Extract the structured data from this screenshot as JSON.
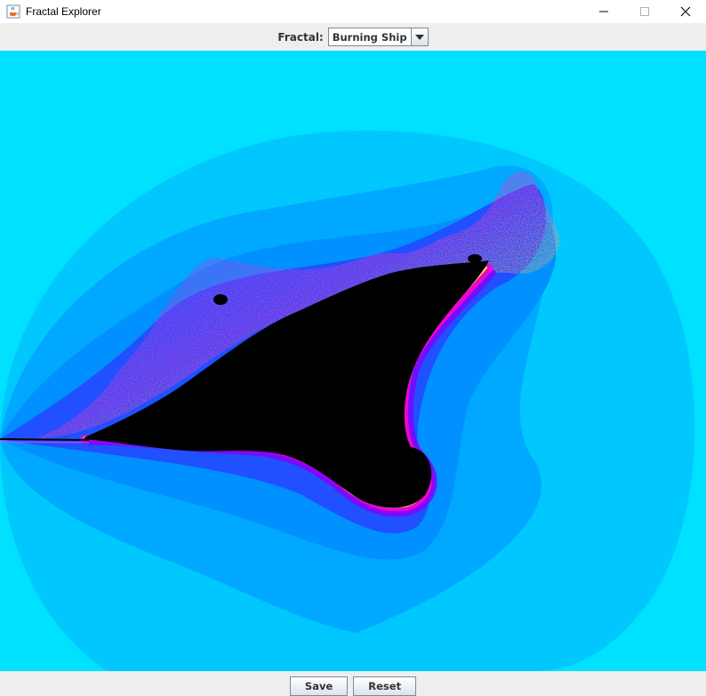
{
  "window": {
    "title": "Fractal Explorer"
  },
  "toolbar": {
    "fractal_label": "Fractal:",
    "fractal_selected": "Burning Ship"
  },
  "buttons": {
    "save_label": "Save",
    "reset_label": "Reset"
  },
  "icons": {
    "app": "java-cup-icon",
    "minimize": "minimize-icon",
    "maximize": "maximize-icon",
    "close": "close-icon",
    "dropdown": "chevron-down-icon"
  },
  "colors": {
    "background": "#00e0ff",
    "band_outer": "#00c8ff",
    "band_mid": "#00a8ff",
    "band_inner": "#0070ff",
    "band_deep": "#2038ff",
    "edge_purple": "#8000ff",
    "edge_magenta": "#ff00c8",
    "edge_yellow": "#ffff40",
    "set_interior": "#000000"
  }
}
